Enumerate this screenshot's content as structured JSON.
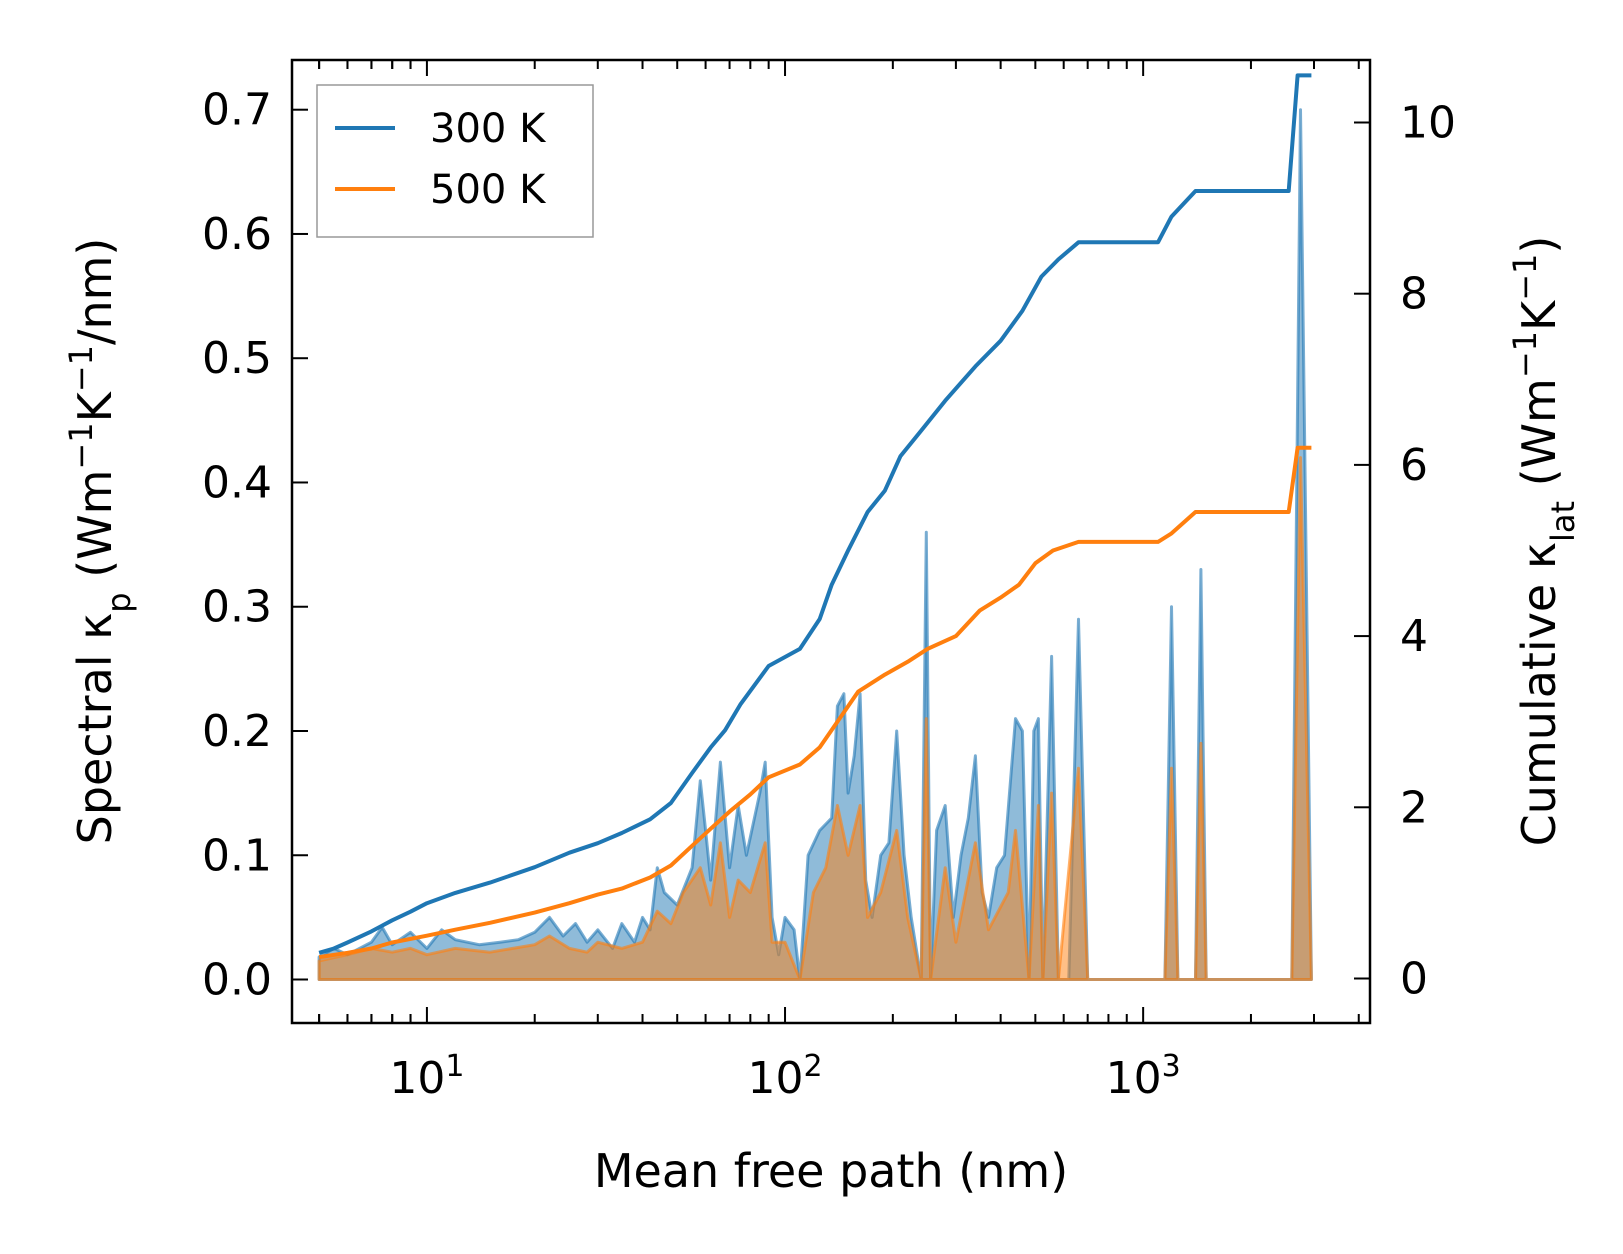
{
  "chart_data": {
    "type": "line+area",
    "x_scale": "log",
    "xlabel": "Mean free path (nm)",
    "xlim": [
      4.2,
      4300
    ],
    "x_ticks": [
      {
        "value": 10,
        "label": "10",
        "exp": "1"
      },
      {
        "value": 100,
        "label": "10",
        "exp": "2"
      },
      {
        "value": 1000,
        "label": "10",
        "exp": "3"
      }
    ],
    "left_axis": {
      "label": "Spectral κ",
      "label_sub": "p",
      "label_units": " (Wm",
      "label_units_sup1": "−1",
      "label_units_mid": "K",
      "label_units_sup2": "−1",
      "label_units_end": "/nm)",
      "ylim": [
        -0.035,
        0.74
      ],
      "ticks": [
        {
          "value": 0.0,
          "label": "0.0"
        },
        {
          "value": 0.1,
          "label": "0.1"
        },
        {
          "value": 0.2,
          "label": "0.2"
        },
        {
          "value": 0.3,
          "label": "0.3"
        },
        {
          "value": 0.4,
          "label": "0.4"
        },
        {
          "value": 0.5,
          "label": "0.5"
        },
        {
          "value": 0.6,
          "label": "0.6"
        },
        {
          "value": 0.7,
          "label": "0.7"
        }
      ]
    },
    "right_axis": {
      "label": "Cumulative κ",
      "label_sub": "lat",
      "label_units": " (Wm",
      "label_units_sup1": "−1",
      "label_units_mid": "K",
      "label_units_sup2": "−1",
      "label_units_end": ")",
      "ylim": [
        -0.52,
        10.73
      ],
      "ticks": [
        {
          "value": 0,
          "label": "0"
        },
        {
          "value": 2,
          "label": "2"
        },
        {
          "value": 4,
          "label": "4"
        },
        {
          "value": 6,
          "label": "6"
        },
        {
          "value": 8,
          "label": "8"
        },
        {
          "value": 10,
          "label": "10"
        }
      ]
    },
    "legend": {
      "position": "top-left",
      "entries": [
        {
          "name": "300 K",
          "color": "#1f77b4"
        },
        {
          "name": "500 K",
          "color": "#ff7f0e"
        }
      ]
    },
    "series": [
      {
        "name": "300 K",
        "color": "#1f77b4",
        "cumulative_axis": "right",
        "cumulative": [
          [
            5,
            0.3
          ],
          [
            5.5,
            0.35
          ],
          [
            6,
            0.42
          ],
          [
            7,
            0.55
          ],
          [
            8,
            0.68
          ],
          [
            9,
            0.78
          ],
          [
            10,
            0.88
          ],
          [
            12,
            1.0
          ],
          [
            15,
            1.12
          ],
          [
            20,
            1.3
          ],
          [
            25,
            1.47
          ],
          [
            30,
            1.58
          ],
          [
            35,
            1.7
          ],
          [
            42,
            1.86
          ],
          [
            48,
            2.05
          ],
          [
            55,
            2.4
          ],
          [
            62,
            2.7
          ],
          [
            68,
            2.9
          ],
          [
            75,
            3.2
          ],
          [
            90,
            3.65
          ],
          [
            110,
            3.85
          ],
          [
            125,
            4.2
          ],
          [
            135,
            4.6
          ],
          [
            150,
            5.0
          ],
          [
            170,
            5.45
          ],
          [
            190,
            5.7
          ],
          [
            210,
            6.1
          ],
          [
            240,
            6.4
          ],
          [
            280,
            6.75
          ],
          [
            340,
            7.15
          ],
          [
            400,
            7.45
          ],
          [
            460,
            7.8
          ],
          [
            520,
            8.2
          ],
          [
            580,
            8.4
          ],
          [
            660,
            8.6
          ],
          [
            1100,
            8.6
          ],
          [
            1200,
            8.9
          ],
          [
            1400,
            9.2
          ],
          [
            2550,
            9.2
          ],
          [
            2700,
            10.55
          ],
          [
            2950,
            10.55
          ]
        ],
        "spectral": [
          [
            5,
            0.018
          ],
          [
            5.5,
            0.025
          ],
          [
            6,
            0.02
          ],
          [
            7,
            0.03
          ],
          [
            7.5,
            0.042
          ],
          [
            8,
            0.028
          ],
          [
            9,
            0.038
          ],
          [
            10,
            0.025
          ],
          [
            11,
            0.04
          ],
          [
            12,
            0.032
          ],
          [
            14,
            0.028
          ],
          [
            16,
            0.03
          ],
          [
            18,
            0.032
          ],
          [
            20,
            0.038
          ],
          [
            22,
            0.05
          ],
          [
            24,
            0.035
          ],
          [
            26,
            0.045
          ],
          [
            28,
            0.03
          ],
          [
            30,
            0.04
          ],
          [
            33,
            0.025
          ],
          [
            35,
            0.045
          ],
          [
            38,
            0.03
          ],
          [
            40,
            0.05
          ],
          [
            42,
            0.04
          ],
          [
            44,
            0.09
          ],
          [
            46,
            0.07
          ],
          [
            50,
            0.06
          ],
          [
            55,
            0.09
          ],
          [
            58,
            0.16
          ],
          [
            60,
            0.12
          ],
          [
            62,
            0.08
          ],
          [
            66,
            0.175
          ],
          [
            70,
            0.09
          ],
          [
            74,
            0.14
          ],
          [
            78,
            0.1
          ],
          [
            85,
            0.15
          ],
          [
            88,
            0.175
          ],
          [
            92,
            0.05
          ],
          [
            96,
            0.02
          ],
          [
            100,
            0.05
          ],
          [
            106,
            0.04
          ],
          [
            110,
            0.0
          ],
          [
            116,
            0.1
          ],
          [
            125,
            0.12
          ],
          [
            135,
            0.13
          ],
          [
            140,
            0.22
          ],
          [
            146,
            0.23
          ],
          [
            150,
            0.15
          ],
          [
            156,
            0.18
          ],
          [
            162,
            0.23
          ],
          [
            168,
            0.08
          ],
          [
            175,
            0.05
          ],
          [
            185,
            0.1
          ],
          [
            195,
            0.11
          ],
          [
            205,
            0.2
          ],
          [
            215,
            0.1
          ],
          [
            225,
            0.05
          ],
          [
            240,
            0.0
          ],
          [
            248,
            0.36
          ],
          [
            255,
            0.0
          ],
          [
            265,
            0.12
          ],
          [
            280,
            0.14
          ],
          [
            295,
            0.05
          ],
          [
            310,
            0.1
          ],
          [
            325,
            0.13
          ],
          [
            340,
            0.18
          ],
          [
            355,
            0.07
          ],
          [
            370,
            0.05
          ],
          [
            390,
            0.09
          ],
          [
            410,
            0.1
          ],
          [
            440,
            0.21
          ],
          [
            460,
            0.2
          ],
          [
            480,
            0.0
          ],
          [
            495,
            0.2
          ],
          [
            510,
            0.21
          ],
          [
            525,
            0.0
          ],
          [
            555,
            0.26
          ],
          [
            580,
            0.0
          ],
          [
            620,
            0.0
          ],
          [
            660,
            0.29
          ],
          [
            700,
            0.0
          ],
          [
            1150,
            0.0
          ],
          [
            1200,
            0.3
          ],
          [
            1250,
            0.0
          ],
          [
            1400,
            0.0
          ],
          [
            1450,
            0.33
          ],
          [
            1500,
            0.0
          ],
          [
            2600,
            0.0
          ],
          [
            2750,
            0.7
          ],
          [
            2950,
            0.0
          ]
        ]
      },
      {
        "name": "500 K",
        "color": "#ff7f0e",
        "cumulative_axis": "right",
        "cumulative": [
          [
            5,
            0.25
          ],
          [
            6,
            0.3
          ],
          [
            7,
            0.35
          ],
          [
            8,
            0.42
          ],
          [
            10,
            0.5
          ],
          [
            12,
            0.57
          ],
          [
            15,
            0.65
          ],
          [
            20,
            0.77
          ],
          [
            25,
            0.88
          ],
          [
            30,
            0.98
          ],
          [
            35,
            1.05
          ],
          [
            42,
            1.18
          ],
          [
            48,
            1.32
          ],
          [
            55,
            1.55
          ],
          [
            62,
            1.75
          ],
          [
            70,
            1.95
          ],
          [
            80,
            2.15
          ],
          [
            90,
            2.35
          ],
          [
            110,
            2.5
          ],
          [
            125,
            2.7
          ],
          [
            140,
            3.0
          ],
          [
            160,
            3.35
          ],
          [
            190,
            3.55
          ],
          [
            220,
            3.7
          ],
          [
            250,
            3.85
          ],
          [
            300,
            4.0
          ],
          [
            350,
            4.3
          ],
          [
            400,
            4.45
          ],
          [
            450,
            4.6
          ],
          [
            500,
            4.85
          ],
          [
            560,
            5.0
          ],
          [
            660,
            5.1
          ],
          [
            1100,
            5.1
          ],
          [
            1200,
            5.2
          ],
          [
            1400,
            5.45
          ],
          [
            2550,
            5.45
          ],
          [
            2700,
            6.2
          ],
          [
            2950,
            6.2
          ]
        ],
        "spectral": [
          [
            5,
            0.015
          ],
          [
            6,
            0.02
          ],
          [
            7,
            0.025
          ],
          [
            8,
            0.022
          ],
          [
            9,
            0.025
          ],
          [
            10,
            0.02
          ],
          [
            12,
            0.025
          ],
          [
            15,
            0.022
          ],
          [
            20,
            0.028
          ],
          [
            22,
            0.035
          ],
          [
            25,
            0.025
          ],
          [
            28,
            0.022
          ],
          [
            30,
            0.03
          ],
          [
            35,
            0.025
          ],
          [
            40,
            0.03
          ],
          [
            44,
            0.055
          ],
          [
            48,
            0.045
          ],
          [
            52,
            0.07
          ],
          [
            58,
            0.09
          ],
          [
            62,
            0.06
          ],
          [
            66,
            0.11
          ],
          [
            70,
            0.05
          ],
          [
            74,
            0.08
          ],
          [
            80,
            0.07
          ],
          [
            88,
            0.11
          ],
          [
            92,
            0.03
          ],
          [
            100,
            0.03
          ],
          [
            110,
            0.0
          ],
          [
            120,
            0.07
          ],
          [
            130,
            0.09
          ],
          [
            140,
            0.14
          ],
          [
            150,
            0.1
          ],
          [
            162,
            0.14
          ],
          [
            170,
            0.05
          ],
          [
            185,
            0.07
          ],
          [
            205,
            0.12
          ],
          [
            220,
            0.05
          ],
          [
            240,
            0.0
          ],
          [
            248,
            0.21
          ],
          [
            255,
            0.0
          ],
          [
            280,
            0.09
          ],
          [
            300,
            0.03
          ],
          [
            340,
            0.11
          ],
          [
            370,
            0.04
          ],
          [
            420,
            0.07
          ],
          [
            440,
            0.12
          ],
          [
            480,
            0.0
          ],
          [
            510,
            0.14
          ],
          [
            525,
            0.0
          ],
          [
            555,
            0.15
          ],
          [
            580,
            0.0
          ],
          [
            660,
            0.17
          ],
          [
            700,
            0.0
          ],
          [
            1150,
            0.0
          ],
          [
            1200,
            0.17
          ],
          [
            1250,
            0.0
          ],
          [
            1400,
            0.0
          ],
          [
            1450,
            0.19
          ],
          [
            1500,
            0.0
          ],
          [
            2600,
            0.0
          ],
          [
            2750,
            0.42
          ],
          [
            2950,
            0.0
          ]
        ]
      }
    ]
  }
}
